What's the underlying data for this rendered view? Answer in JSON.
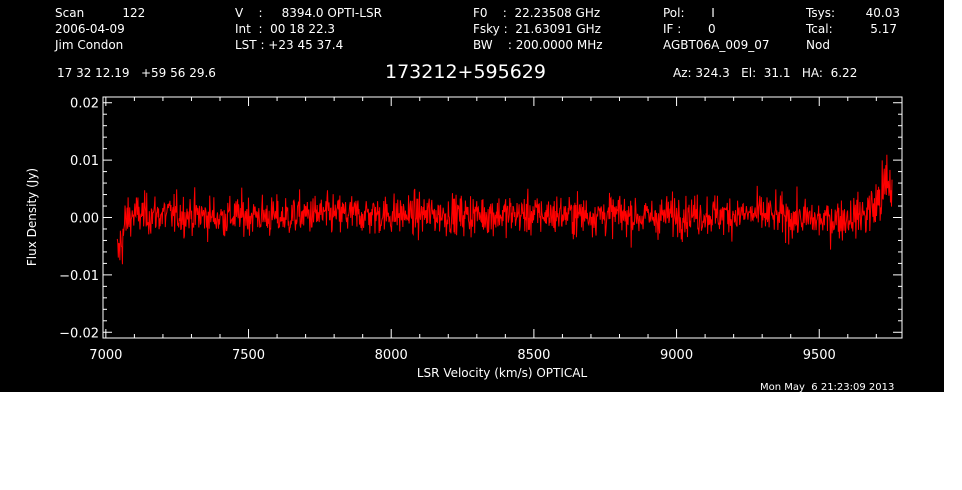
{
  "header": {
    "col1": [
      "Scan          122",
      "2006-04-09",
      "Jim Condon"
    ],
    "col2": [
      "V    :     8394.0 OPTI-LSR",
      "Int  :  00 18 22.3",
      "LST : +23 45 37.4"
    ],
    "col3": [
      "F0    :  22.23508 GHz",
      "Fsky :  21.63091 GHz",
      "BW    : 200.0000 MHz"
    ],
    "col4": [
      "Pol:       I",
      "IF :       0",
      "AGBT06A_009_07"
    ],
    "col5_labels": [
      "Tsys:",
      "Tcal:",
      "Nod"
    ],
    "col5_values": [
      "40.03",
      "5.17",
      ""
    ],
    "coords": "17 32 12.19   +59 56 29.6",
    "source": "173212+595629",
    "az_el_ha": "Az: 324.3   El:  31.1   HA:  6.22"
  },
  "timestamp": "Mon May  6 21:23:09 2013",
  "colors": {
    "background": "#000000",
    "axes": "#ffffff",
    "series": "#ff0000"
  },
  "chart_data": {
    "type": "line",
    "title": "173212+595629",
    "xlabel": "LSR Velocity (km/s) OPTICAL",
    "ylabel": "Flux Density (Jy)",
    "xlim": [
      6990,
      9790
    ],
    "ylim": [
      -0.021,
      0.021
    ],
    "x_ticks": [
      7000,
      7500,
      8000,
      8500,
      9000,
      9500
    ],
    "x_tick_labels": [
      "7000",
      "7500",
      "8000",
      "8500",
      "9000",
      "9500"
    ],
    "y_ticks": [
      0.02,
      0.01,
      0.0,
      -0.01,
      -0.02
    ],
    "y_tick_labels": [
      "0.02",
      "0.01",
      "0.00",
      "−0.01",
      "−0.02"
    ],
    "grid": false,
    "series": [
      {
        "color": "#ff0000",
        "noise_rms": 0.0035,
        "x": [
          7040,
          7050,
          7060,
          7070,
          7080,
          7100,
          7200,
          7300,
          7400,
          7500,
          7600,
          7700,
          7800,
          7900,
          8000,
          8100,
          8200,
          8300,
          8400,
          8500,
          8600,
          8700,
          8800,
          8900,
          9000,
          9100,
          9200,
          9300,
          9400,
          9500,
          9600,
          9650,
          9700,
          9720,
          9740,
          9755
        ],
        "y": [
          -0.007,
          -0.005,
          -0.003,
          -0.001,
          0.0,
          0.0005,
          0.0005,
          0.0005,
          0.0,
          0.0005,
          0.0,
          0.0005,
          0.0005,
          0.0005,
          0.0005,
          0.0005,
          0.0005,
          0.0005,
          0.0005,
          0.0005,
          0.0005,
          0.0005,
          0.0005,
          0.0,
          0.0005,
          0.0005,
          0.0005,
          0.0005,
          0.0,
          -0.0005,
          0.0,
          0.0005,
          0.002,
          0.004,
          0.006,
          0.004
        ]
      }
    ]
  }
}
